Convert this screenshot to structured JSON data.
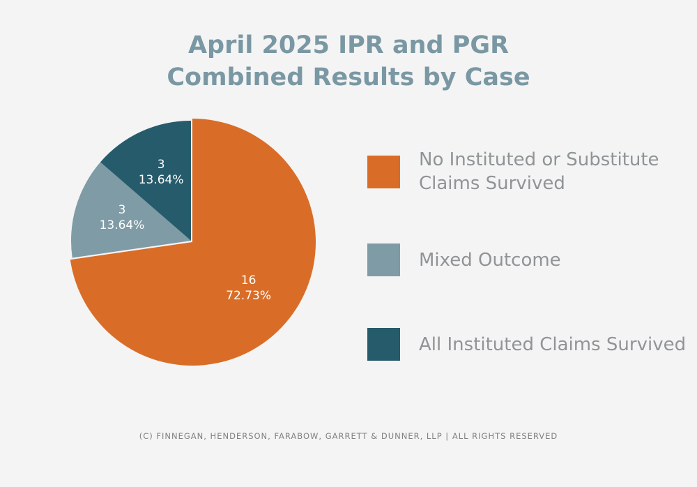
{
  "chart_data": {
    "type": "pie",
    "title": [
      "April 2025 IPR and PGR",
      "Combined Results by Case"
    ],
    "slices": [
      {
        "label": "No Instituted or Substitute Claims Survived",
        "value": 16,
        "percent_label": "72.73%",
        "color": "#d96d27",
        "exploded": true
      },
      {
        "label": "Mixed Outcome",
        "value": 3,
        "percent_label": "13.64%",
        "color": "#7f9ba6",
        "exploded": false
      },
      {
        "label": "All Instituted Claims Survived",
        "value": 3,
        "percent_label": "13.64%",
        "color": "#265b6b",
        "exploded": false
      }
    ],
    "legend_placement": "right"
  },
  "footer": "(C) FINNEGAN, HENDERSON, FARABOW, GARRETT & DUNNER, LLP | ALL RIGHTS RESERVED"
}
